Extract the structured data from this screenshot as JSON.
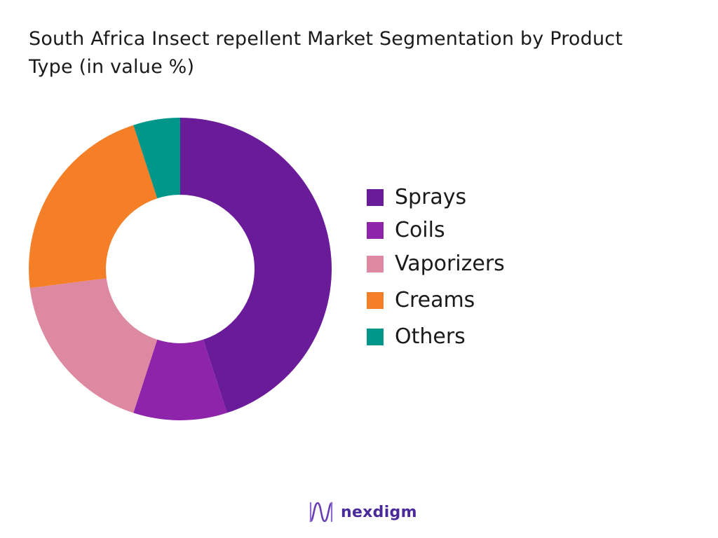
{
  "chart_data": {
    "type": "pie",
    "title": "South Africa Insect repellent Market  Segmentation by Product Type (in value %)",
    "categories": [
      "Sprays",
      "Coils",
      "Vaporizers",
      "Creams",
      "Others"
    ],
    "values": [
      45,
      10,
      18,
      22,
      5
    ],
    "colors": [
      "#6a1b9a",
      "#8e24aa",
      "#de89a2",
      "#f47f27",
      "#00978a"
    ],
    "donut": true,
    "legend_position": "right"
  },
  "brand": {
    "name": "nexdigm",
    "logo_icon": "nexdigm-wave-logo-icon"
  }
}
